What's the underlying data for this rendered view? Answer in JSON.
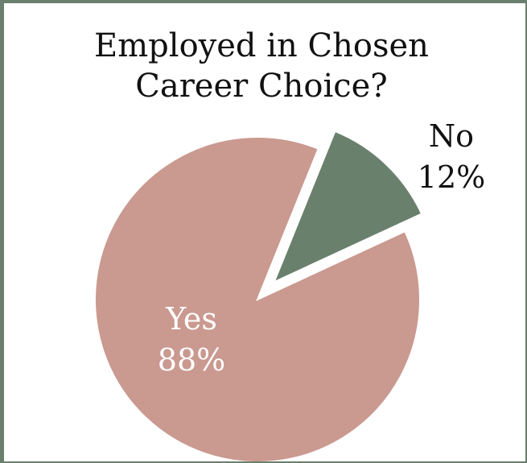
{
  "chart_data": {
    "type": "pie",
    "title_lines": [
      "Employed in Chosen",
      "Career Choice?"
    ],
    "slices": [
      {
        "label": "Yes",
        "value": 88,
        "value_label": "88%",
        "color": "#ca9990",
        "label_color": "#ffffff",
        "exploded": false
      },
      {
        "label": "No",
        "value": 12,
        "value_label": "12%",
        "color": "#69806d",
        "label_color": "#111111",
        "exploded": true
      }
    ],
    "legend": "none"
  }
}
